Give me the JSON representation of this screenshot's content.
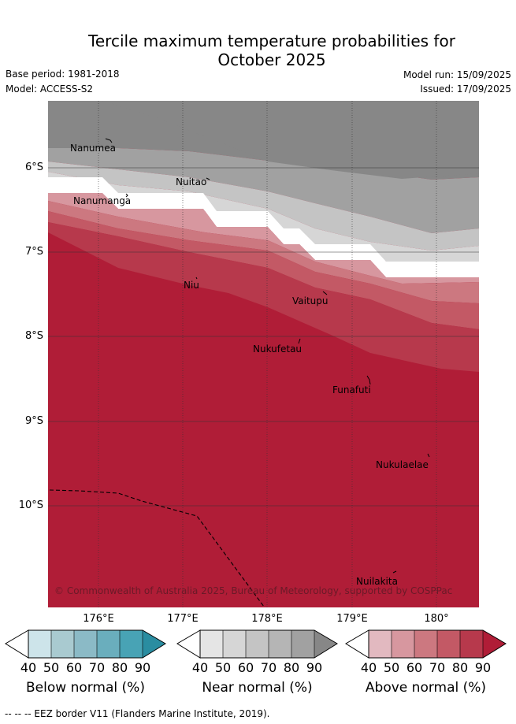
{
  "title_line1": "Tercile maximum temperature probabilities for",
  "title_line2": "October 2025",
  "base_period": "Base period: 1981-2018",
  "model": "Model: ACCESS-S2",
  "model_run": "Model run: 15/09/2025",
  "issued": "Issued: 17/09/2025",
  "copyright": "© Commonwealth of Australia 2025, Bureau of Meteorology, supported by COSPPac",
  "lat_ticks": [
    "6°S",
    "7°S",
    "8°S",
    "9°S",
    "10°S"
  ],
  "lon_ticks": [
    "176°E",
    "177°E",
    "178°E",
    "179°E",
    "180°"
  ],
  "places": [
    "Nanumea",
    "Nuitao",
    "Nanumanga",
    "Niu",
    "Vaitupu",
    "Nukufetau",
    "Funafuti",
    "Nukulaelae",
    "Nuilakita"
  ],
  "colorbars": [
    {
      "title": "Below normal (%)",
      "labels": [
        "40",
        "50",
        "60",
        "70",
        "80",
        "90"
      ],
      "colors": [
        "#ffffff",
        "#cde4ea",
        "#a9cad0",
        "#8bbac6",
        "#6aaebd",
        "#48a3b5",
        "#2a8da1"
      ]
    },
    {
      "title": "Near normal (%)",
      "labels": [
        "40",
        "50",
        "60",
        "70",
        "80",
        "90"
      ],
      "colors": [
        "#ffffff",
        "#e5e5e5",
        "#d6d6d6",
        "#c4c4c4",
        "#b5b5b5",
        "#a1a1a1",
        "#878787"
      ]
    },
    {
      "title": "Above normal (%)",
      "labels": [
        "40",
        "50",
        "60",
        "70",
        "80",
        "90"
      ],
      "colors": [
        "#ffffff",
        "#e2b9c0",
        "#d7979f",
        "#cc7880",
        "#c35965",
        "#b7394c",
        "#b01d37"
      ]
    }
  ],
  "footer": "--  --  -- EEZ border V11 (Flanders Marine Institute, 2019).",
  "colors": {
    "near_90": "#878787",
    "near_80": "#a1a1a1",
    "near_70": "#b5b5b5",
    "near_60": "#c4c4c4",
    "near_50": "#d6d6d6",
    "above_50": "#d7979f",
    "above_60": "#cc7880",
    "above_70": "#c35965",
    "above_80": "#b7394c",
    "above_90": "#b01d37"
  }
}
